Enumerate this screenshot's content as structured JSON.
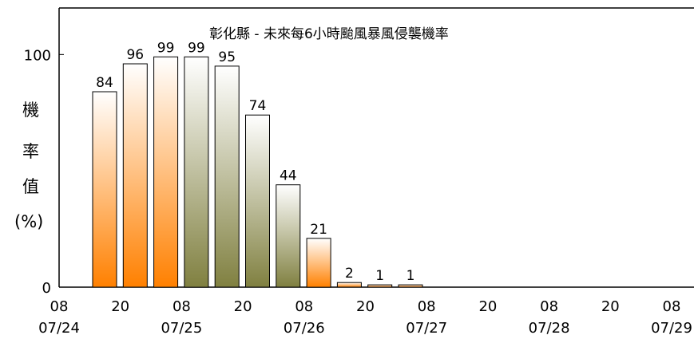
{
  "chart_data": {
    "type": "bar",
    "title": "彰化縣 - 未來每6小時颱風暴風侵襲機率",
    "ylabel_chars": [
      "機",
      "率",
      "值",
      "(%)"
    ],
    "ylim": [
      0,
      120
    ],
    "y_ticks": [
      0,
      100
    ],
    "x_tick_hours": [
      "08",
      "20",
      "08",
      "20",
      "08",
      "20",
      "08",
      "20",
      "08",
      "20",
      "08"
    ],
    "x_tick_dates": [
      "07/24",
      "07/25",
      "07/26",
      "07/27",
      "07/28",
      "07/29"
    ],
    "grid": false,
    "categories": [
      "07/24 14",
      "07/24 20",
      "07/25 02",
      "07/25 08",
      "07/25 14",
      "07/25 20",
      "07/26 02",
      "07/26 08",
      "07/26 14",
      "07/26 20",
      "07/27 02"
    ],
    "values": [
      84,
      96,
      99,
      99,
      95,
      74,
      44,
      21,
      2,
      1,
      1
    ],
    "bar_colors": [
      "#ff8000",
      "#ff8000",
      "#ff8000",
      "#808040",
      "#808040",
      "#808040",
      "#808040",
      "#ff8000",
      "#ff8000",
      "#ff8000",
      "#ff8000"
    ]
  }
}
